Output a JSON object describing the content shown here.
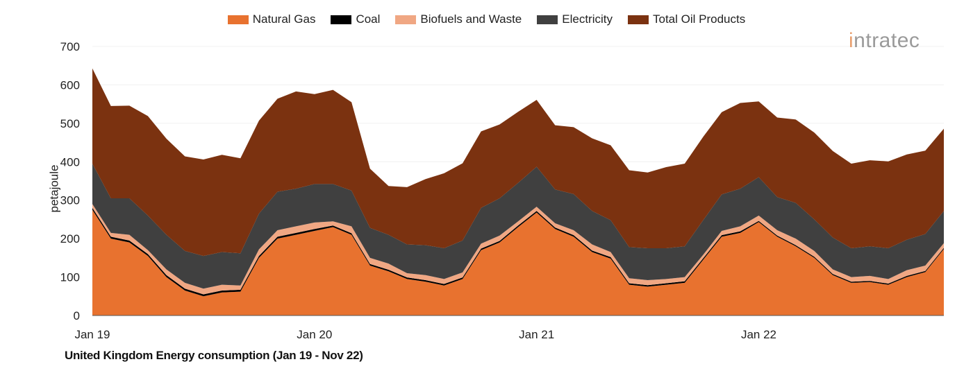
{
  "chart_data": {
    "type": "area",
    "stacked": true,
    "title": "United Kingdom Energy consumption (Jan 19 - Nov 22)",
    "ylabel": "petajoule",
    "xlabel": "",
    "ylim": [
      0,
      700
    ],
    "yticks": [
      0,
      100,
      200,
      300,
      400,
      500,
      600,
      700
    ],
    "x_range": [
      "2019-01",
      "2022-11"
    ],
    "xtick_labels": [
      {
        "month_index": 0,
        "label": "Jan 19"
      },
      {
        "month_index": 12,
        "label": "Jan 20"
      },
      {
        "month_index": 24,
        "label": "Jan 21"
      },
      {
        "month_index": 36,
        "label": "Jan 22"
      }
    ],
    "grid": true,
    "legend": "top",
    "series": [
      {
        "name": "Natural Gas",
        "color": "#E8722F",
        "values": [
          275,
          200,
          190,
          155,
          100,
          65,
          50,
          60,
          62,
          150,
          200,
          210,
          220,
          230,
          210,
          130,
          115,
          95,
          88,
          78,
          95,
          170,
          190,
          230,
          268,
          225,
          205,
          165,
          148,
          80,
          75,
          80,
          85,
          145,
          205,
          215,
          243,
          205,
          180,
          150,
          105,
          85,
          87,
          80,
          100,
          113,
          173
        ]
      },
      {
        "name": "Coal",
        "color": "#000000",
        "values": [
          5,
          5,
          5,
          5,
          5,
          5,
          5,
          5,
          5,
          5,
          5,
          5,
          5,
          4,
          4,
          4,
          4,
          4,
          4,
          4,
          4,
          4,
          4,
          4,
          4,
          4,
          4,
          4,
          4,
          4,
          4,
          4,
          4,
          4,
          4,
          4,
          3,
          3,
          3,
          3,
          3,
          3,
          3,
          3,
          3,
          3,
          3
        ]
      },
      {
        "name": "Biofuels and Waste",
        "color": "#F0A783",
        "values": [
          10,
          10,
          15,
          10,
          15,
          15,
          15,
          15,
          11,
          17,
          17,
          17,
          17,
          11,
          18,
          16,
          16,
          11,
          13,
          13,
          13,
          13,
          14,
          11,
          11,
          11,
          13,
          16,
          13,
          13,
          13,
          11,
          11,
          9,
          11,
          13,
          14,
          14,
          17,
          15,
          12,
          12,
          13,
          12,
          15,
          14,
          12
        ]
      },
      {
        "name": "Electricity",
        "color": "#404040",
        "values": [
          105,
          90,
          95,
          90,
          90,
          83,
          85,
          85,
          84,
          93,
          100,
          98,
          100,
          97,
          93,
          78,
          75,
          75,
          78,
          80,
          83,
          93,
          97,
          100,
          104,
          88,
          94,
          87,
          83,
          81,
          83,
          80,
          80,
          90,
          95,
          98,
          100,
          86,
          93,
          82,
          83,
          75,
          77,
          80,
          79,
          82,
          84
        ]
      },
      {
        "name": "Total Oil Products",
        "color": "#7B3210",
        "values": [
          248,
          240,
          241,
          259,
          250,
          246,
          251,
          253,
          247,
          242,
          242,
          253,
          234,
          245,
          230,
          154,
          127,
          149,
          172,
          195,
          201,
          199,
          192,
          185,
          174,
          167,
          174,
          189,
          195,
          200,
          197,
          211,
          215,
          217,
          214,
          223,
          197,
          207,
          217,
          226,
          225,
          220,
          224,
          226,
          222,
          217,
          214
        ]
      }
    ]
  },
  "logo": {
    "text": "intratec"
  }
}
